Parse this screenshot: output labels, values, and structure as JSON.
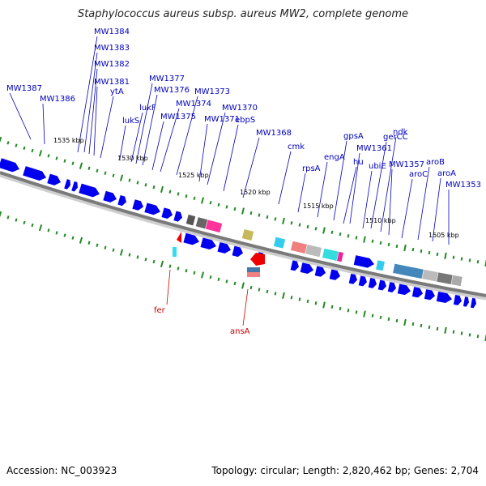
{
  "title": "Staphylococcus aureus subsp. aureus MW2, complete genome",
  "footer": {
    "accession": "Accession: NC_003923",
    "summary": "Topology: circular; Length: 2,820,462 bp; Genes: 2,704"
  },
  "colors": {
    "forward_gene": "#0000ee",
    "label_forward": "#0000bb",
    "label_reverse": "#cc0000",
    "reverse_gene": "#ee0000",
    "backbone": "#888888",
    "tick": "#228822"
  },
  "scale": {
    "unit": "kbp",
    "ticks": [
      "1535 kbp",
      "1530 kbp",
      "1525 kbp",
      "1520 kbp",
      "1515 kbp",
      "1510 kbp",
      "1505 kbp"
    ]
  },
  "forward_labels": [
    "MW1384",
    "MW1383",
    "MW1382",
    "MW1381",
    "ytA",
    "MW1387",
    "MW1386",
    "lukS",
    "lukF",
    "MW1377",
    "MW1376",
    "MW1374",
    "MW1375",
    "MW1373",
    "MW1371",
    "MW1370",
    "ebpS",
    "MW1368",
    "cmk",
    "rpsA",
    "engA",
    "gpsA",
    "hu",
    "MW1361",
    "ubiE",
    "gerCC",
    "ndk",
    "MW1357",
    "aroC",
    "aroB",
    "aroA",
    "MW1353"
  ],
  "reverse_labels": [
    "fer",
    "ansA"
  ]
}
